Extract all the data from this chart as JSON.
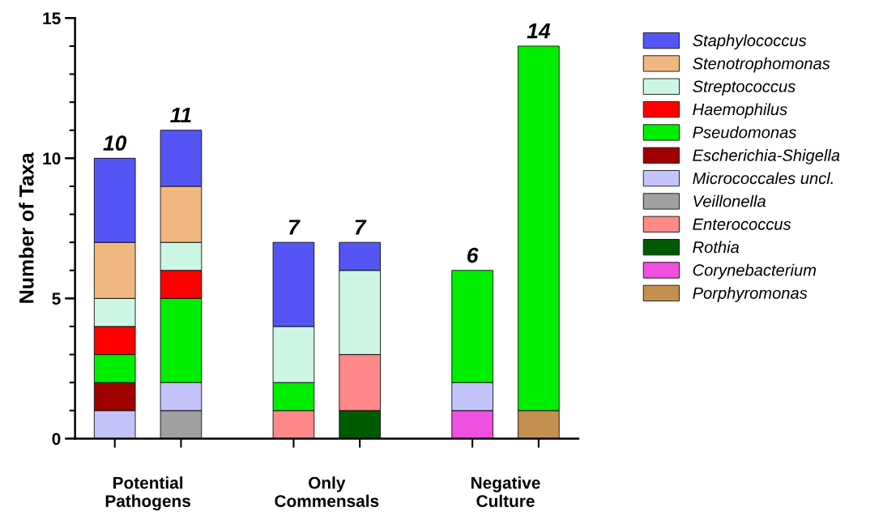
{
  "chart_data": {
    "type": "bar",
    "stacked": true,
    "ylabel": "Number of Taxa",
    "categories": [
      null,
      null,
      null,
      null,
      null,
      null
    ],
    "annotations": [
      "Potential\nPathogens",
      "Only\nCommensals",
      "Negative\nCulture"
    ],
    "ylim": [
      0,
      15
    ],
    "yticks": [
      0,
      {
        "value": 1,
        "label": null
      },
      {
        "value": 2,
        "label": null
      },
      {
        "value": 3,
        "label": null
      },
      {
        "value": 4,
        "label": null
      },
      5,
      {
        "value": 6,
        "label": null
      },
      {
        "value": 7,
        "label": null
      },
      {
        "value": 8,
        "label": null
      },
      {
        "value": 9,
        "label": null
      },
      10,
      {
        "value": 11,
        "label": null
      },
      {
        "value": 12,
        "label": null
      },
      {
        "value": 13,
        "label": null
      },
      {
        "value": 14,
        "label": null
      },
      15
    ],
    "grid": false,
    "legend": "right",
    "totals": [
      "10",
      "11",
      "7",
      "7",
      "6",
      "14"
    ],
    "series": [
      {
        "name": "Porphyromonas",
        "color": "#c49050",
        "values": [
          null,
          null,
          null,
          null,
          null,
          1
        ]
      },
      {
        "name": "Corynebacterium",
        "color": "#f050e0",
        "values": [
          null,
          null,
          null,
          null,
          1,
          null
        ]
      },
      {
        "name": "Rothia",
        "color": "#005a00",
        "values": [
          null,
          null,
          null,
          1,
          null,
          null
        ]
      },
      {
        "name": "Enterococcus",
        "color": "#ff8888",
        "values": [
          null,
          null,
          1,
          2,
          null,
          null
        ]
      },
      {
        "name": "Veillonella",
        "color": "#a0a0a0",
        "values": [
          null,
          1,
          null,
          null,
          null,
          null
        ]
      },
      {
        "name": "Micrococcales uncl.",
        "color": "#c4c4fa",
        "values": [
          1,
          1,
          null,
          null,
          1,
          null
        ]
      },
      {
        "name": "Escherichia-Shigella",
        "color": "#a00000",
        "values": [
          1,
          null,
          null,
          null,
          null,
          null
        ]
      },
      {
        "name": "Pseudomonas",
        "color": "#00ee00",
        "values": [
          1,
          3,
          1,
          null,
          4,
          13
        ]
      },
      {
        "name": "Haemophilus",
        "color": "#ff0000",
        "values": [
          1,
          1,
          null,
          null,
          null,
          null
        ]
      },
      {
        "name": "Streptococcus",
        "color": "#ccf7e4",
        "values": [
          1,
          1,
          2,
          3,
          null,
          null
        ]
      },
      {
        "name": "Stenotrophomonas",
        "color": "#f0b880",
        "values": [
          2,
          2,
          null,
          null,
          null,
          null
        ]
      },
      {
        "name": "Staphylococcus",
        "color": "#5555f5",
        "values": [
          3,
          2,
          3,
          1,
          null,
          null
        ]
      }
    ]
  }
}
